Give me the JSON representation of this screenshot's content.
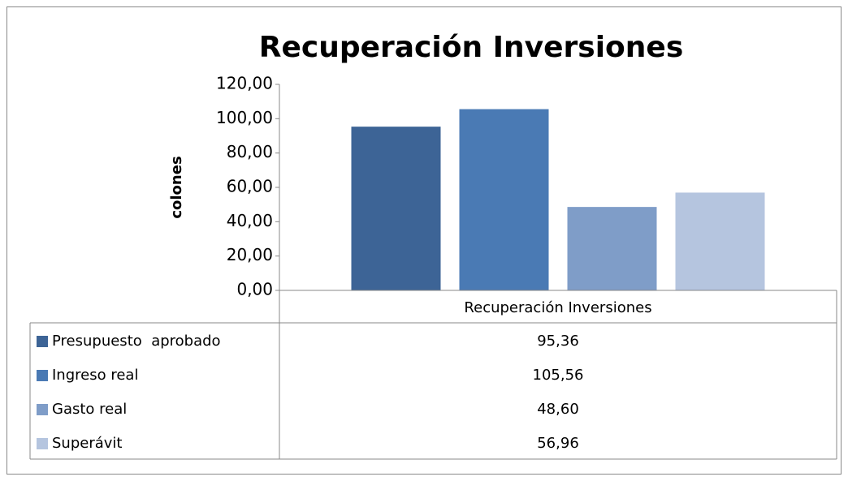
{
  "chart_data": {
    "type": "bar",
    "title": "Recuperación Inversiones",
    "y_label": "colones",
    "categories": [
      "Recuperación Inversiones"
    ],
    "series": [
      {
        "name": "Presupuesto  aprobado",
        "color": "#3d6496",
        "values": [
          95.36
        ],
        "value_labels": [
          "95,36"
        ]
      },
      {
        "name": "Ingreso real",
        "color": "#4a7ab4",
        "values": [
          105.56
        ],
        "value_labels": [
          "105,56"
        ]
      },
      {
        "name": "Gasto real",
        "color": "#7f9dc8",
        "values": [
          48.6
        ],
        "value_labels": [
          "48,60"
        ]
      },
      {
        "name": "Superávit",
        "color": "#b5c5df",
        "values": [
          56.96
        ],
        "value_labels": [
          "56,96"
        ]
      }
    ],
    "ylim": [
      0,
      120
    ],
    "yticks": [
      {
        "value": 0,
        "label": "0,00"
      },
      {
        "value": 20,
        "label": "20,00"
      },
      {
        "value": 40,
        "label": "40,00"
      },
      {
        "value": 60,
        "label": "60,00"
      },
      {
        "value": 80,
        "label": "80,00"
      },
      {
        "value": 100,
        "label": "100,00"
      },
      {
        "value": 120,
        "label": "120,00"
      }
    ],
    "grid": false,
    "data_table": true
  }
}
